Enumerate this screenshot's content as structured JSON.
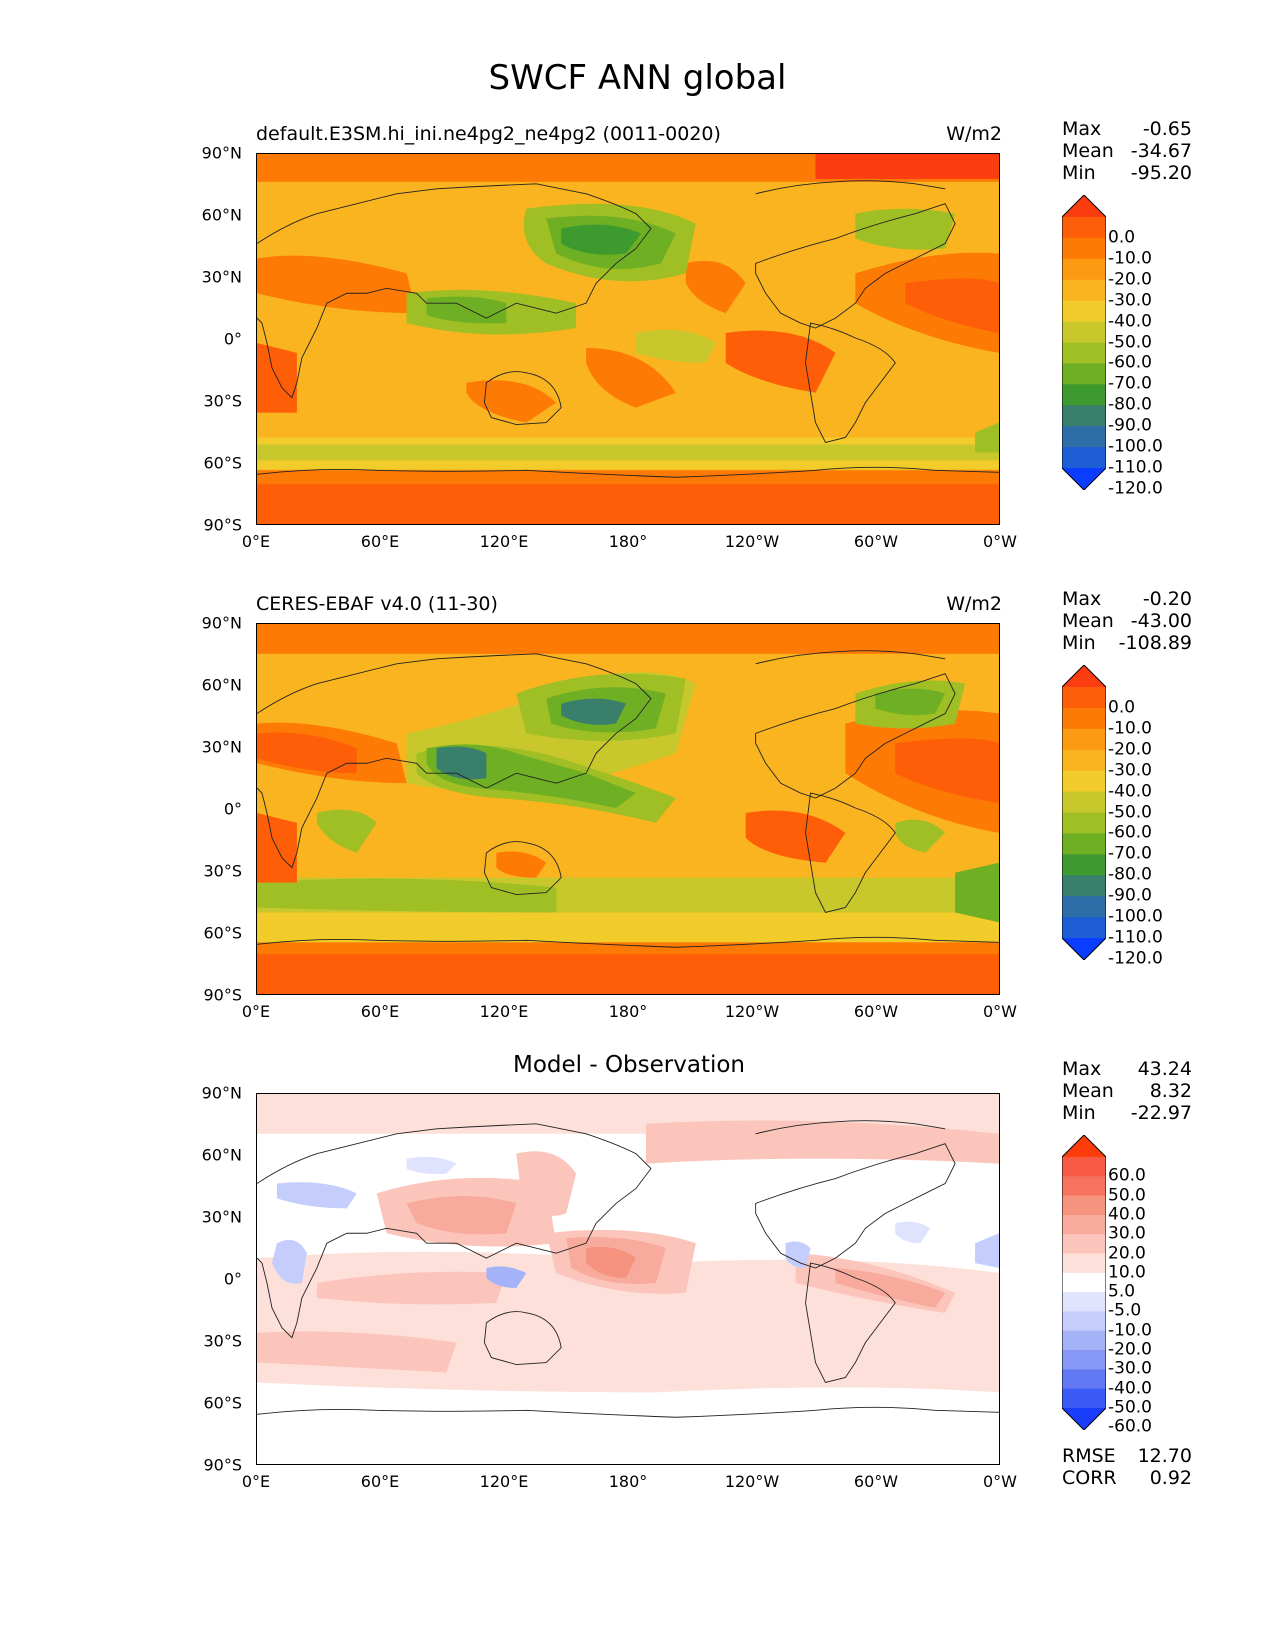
{
  "figure_title": "SWCF ANN global",
  "lat_ticks": [
    "90°N",
    "60°N",
    "30°N",
    "0°",
    "30°S",
    "60°S",
    "90°S"
  ],
  "lon_ticks": [
    "0°E",
    "60°E",
    "120°E",
    "180°",
    "120°W",
    "60°W",
    "0°W"
  ],
  "panels": [
    {
      "title": "default.E3SM.hi_ini.ne4pg2_ne4pg2 (0011-0020)",
      "units": "W/m2",
      "stats": {
        "max_label": "Max",
        "max": "-0.65",
        "mean_label": "Mean",
        "mean": "-34.67",
        "min_label": "Min",
        "min": "-95.20"
      },
      "colorbar": {
        "ticks": [
          "0.0",
          "-10.0",
          "-20.0",
          "-30.0",
          "-40.0",
          "-50.0",
          "-60.0",
          "-70.0",
          "-80.0",
          "-90.0",
          "-100.0",
          "-110.0",
          "-120.0"
        ],
        "colors": [
          "#fc3d10",
          "#fd5e07",
          "#fd7a05",
          "#fc9a12",
          "#fab41f",
          "#f2cc2a",
          "#c8c72b",
          "#9fbf25",
          "#6eaf23",
          "#3c9a2e",
          "#3a7f6c",
          "#2e6ea8",
          "#1d5ed6",
          "#0a3dff"
        ]
      }
    },
    {
      "title": "CERES-EBAF v4.0 (11-30)",
      "units": "W/m2",
      "stats": {
        "max_label": "Max",
        "max": "-0.20",
        "mean_label": "Mean",
        "mean": "-43.00",
        "min_label": "Min",
        "min": "-108.89"
      },
      "colorbar": {
        "ticks": [
          "0.0",
          "-10.0",
          "-20.0",
          "-30.0",
          "-40.0",
          "-50.0",
          "-60.0",
          "-70.0",
          "-80.0",
          "-90.0",
          "-100.0",
          "-110.0",
          "-120.0"
        ],
        "colors": [
          "#fc3d10",
          "#fd5e07",
          "#fd7a05",
          "#fc9a12",
          "#fab41f",
          "#f2cc2a",
          "#c8c72b",
          "#9fbf25",
          "#6eaf23",
          "#3c9a2e",
          "#3a7f6c",
          "#2e6ea8",
          "#1d5ed6",
          "#0a3dff"
        ]
      }
    },
    {
      "title": "Model - Observation",
      "units": "",
      "stats": {
        "max_label": "Max",
        "max": "43.24",
        "mean_label": "Mean",
        "mean": "8.32",
        "min_label": "Min",
        "min": "-22.97"
      },
      "colorbar": {
        "ticks": [
          "60.0",
          "50.0",
          "40.0",
          "30.0",
          "20.0",
          "10.0",
          "5.0",
          "-5.0",
          "-10.0",
          "-20.0",
          "-30.0",
          "-40.0",
          "-50.0",
          "-60.0"
        ],
        "colors": [
          "#fe3d0c",
          "#f75b44",
          "#f5735f",
          "#f6937f",
          "#f8ab9c",
          "#fbc5bb",
          "#fde0da",
          "#ffffff",
          "#dfe3fd",
          "#c4cdfb",
          "#a4b3f8",
          "#8797f5",
          "#6279f4",
          "#3b5bf7",
          "#1a3dfd"
        ]
      },
      "rmse_label": "RMSE",
      "rmse": "12.70",
      "corr_label": "CORR",
      "corr": "0.92"
    }
  ]
}
